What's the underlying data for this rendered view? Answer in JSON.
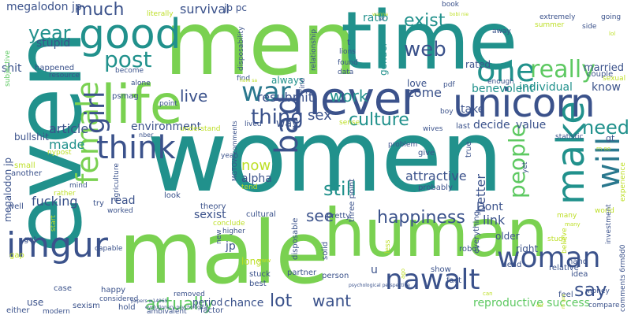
{
  "palette": {
    "teal": "#21918c",
    "navy": "#3b528b",
    "purple": "#482878",
    "green": "#7ad151",
    "lime": "#bddf26",
    "mint": "#5ec962",
    "sea": "#2a788e",
    "aqua": "#22a884"
  },
  "words": [
    "women",
    "men",
    "time",
    "even",
    "male",
    "human",
    "never",
    "unicorn",
    "life",
    "good",
    "female",
    "imgur",
    "make",
    "will",
    "think",
    "post",
    "war",
    "one",
    "really",
    "culture",
    "nawalt",
    "woman",
    "girl",
    "bad",
    "people",
    "thing",
    "much",
    "happiness",
    "year",
    "web",
    "exist",
    "need",
    "still",
    "say",
    "see",
    "want",
    "lot",
    "actually",
    "reproductive success",
    "benevolent",
    "work",
    "ratio",
    "come",
    "live",
    "survival",
    "resubmit",
    "megalodon jp",
    "sex",
    "environment",
    "made",
    "now",
    "alpha",
    "fucking",
    "sexist",
    "article",
    "attractive",
    "better",
    "link",
    "Dont",
    "individual",
    "know",
    "take",
    "decide",
    "value",
    "gender",
    "love",
    "married",
    "couple",
    "rated",
    "always",
    "stupid",
    "shit",
    "psmag",
    "bullshit",
    "way",
    "read",
    "chance",
    "period",
    "use",
    "either",
    "sexism",
    "hold",
    "factor",
    "ambivalent",
    "modern",
    "happy",
    "case",
    "removed",
    "considered",
    "best",
    "partner",
    "stuck",
    "long",
    "person",
    "relative",
    "idea",
    "hand",
    "money",
    "compare",
    "feel",
    "fact",
    "show",
    "older",
    "right",
    "lead",
    "robot",
    "everything",
    "probably",
    "three point",
    "give",
    "true",
    "last",
    "problem",
    "solid",
    "disposable",
    "cultural",
    "pretty",
    "theory",
    "look",
    "try",
    "worked",
    "agriculture",
    "mind",
    "another",
    "small",
    "rather",
    "gap",
    "got",
    "well",
    "start",
    "capable",
    "subjective",
    "happened",
    "resource",
    "become",
    "alone",
    "point",
    "understand",
    "lived",
    "tend",
    "yeah",
    "conclude",
    "higher",
    "new",
    "jp pc",
    "find",
    "relationship",
    "disposability",
    "lions",
    "book",
    "extremely",
    "summer",
    "going",
    "side",
    "away",
    "enough",
    "boy",
    "pdf",
    "wives",
    "statistic",
    "gt",
    "sexual",
    "study",
    "world",
    "believe",
    "many",
    "yet",
    "investment",
    "experience",
    "comments 6rm8d0",
    "megalodon jp",
    "found",
    "data",
    "kind",
    "nber",
    "nypost",
    "MGTOW comments",
    "papers w14969",
    "psychological perspective",
    "evolutionary psychological",
    "u",
    "sense",
    "literally",
    "t",
    "let",
    "wanna",
    "bobi nie",
    "jp",
    "www",
    "less",
    "ago",
    "can",
    "rh gov",
    "hom sa",
    "lol",
    "dsf",
    "rn oo",
    "many"
  ]
}
